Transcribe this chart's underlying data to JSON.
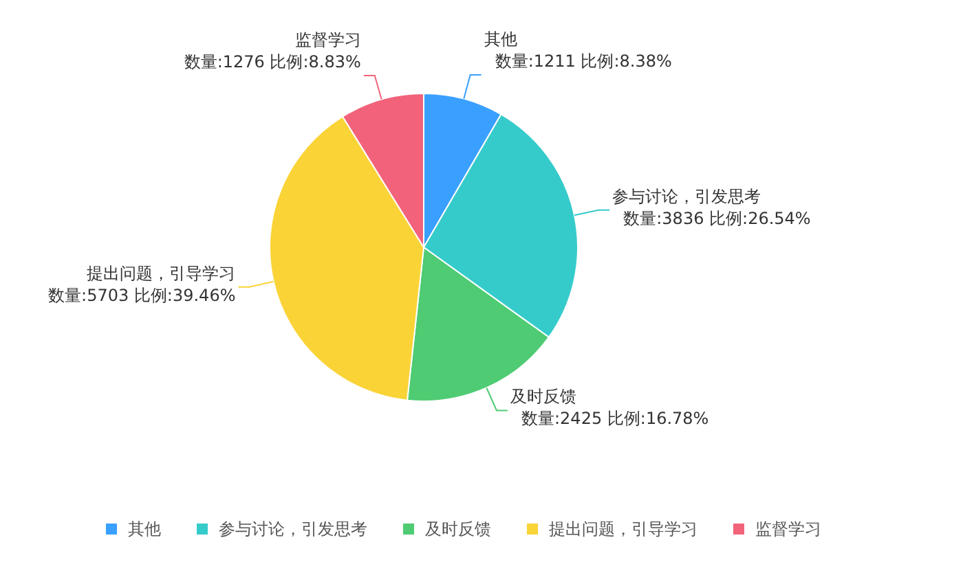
{
  "chart_data": {
    "type": "pie",
    "categories": [
      "其他",
      "参与讨论，引发思考",
      "及时反馈",
      "提出问题，引导学习",
      "监督学习"
    ],
    "values": [
      1211,
      3836,
      2425,
      5703,
      1276
    ],
    "value_labels": [
      "数量:1211 比例:8.38%",
      "数量:3836 比例:26.54%",
      "数量:2425 比例:16.78%",
      "数量:5703 比例:39.46%",
      "数量:1276 比例:8.83%"
    ],
    "colors": [
      "#3aa0ff",
      "#36cbcb",
      "#4ecb73",
      "#fad337",
      "#f2637b"
    ],
    "legend": "bottom"
  }
}
